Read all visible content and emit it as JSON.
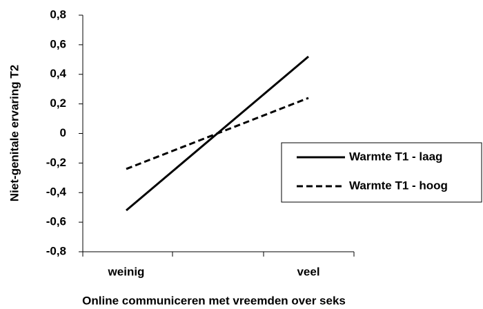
{
  "chart_data": {
    "type": "line",
    "x_label": "Online communiceren met vreemden over seks",
    "y_label": "Niet-genitale ervaring T2",
    "categories": [
      "weinig",
      "veel"
    ],
    "series": [
      {
        "name": "Warmte T1 - laag",
        "color": "#000000",
        "dash": "solid",
        "values": [
          -0.52,
          0.52
        ]
      },
      {
        "name": "Warmte T1 - hoog",
        "color": "#000000",
        "dash": "dashed",
        "values": [
          -0.24,
          0.24
        ]
      }
    ],
    "ylim": [
      -0.8,
      0.8
    ],
    "yticks": [
      {
        "value": -0.8,
        "label": "-0,8"
      },
      {
        "value": -0.6,
        "label": "-0,6"
      },
      {
        "value": -0.4,
        "label": "-0,4"
      },
      {
        "value": -0.2,
        "label": "-0,2"
      },
      0,
      {
        "value": 0.2,
        "label": "0,2"
      },
      {
        "value": 0.4,
        "label": "0,4"
      },
      {
        "value": 0.6,
        "label": "0,6"
      },
      {
        "value": 0.8,
        "label": "0,8"
      }
    ],
    "grid": false
  }
}
